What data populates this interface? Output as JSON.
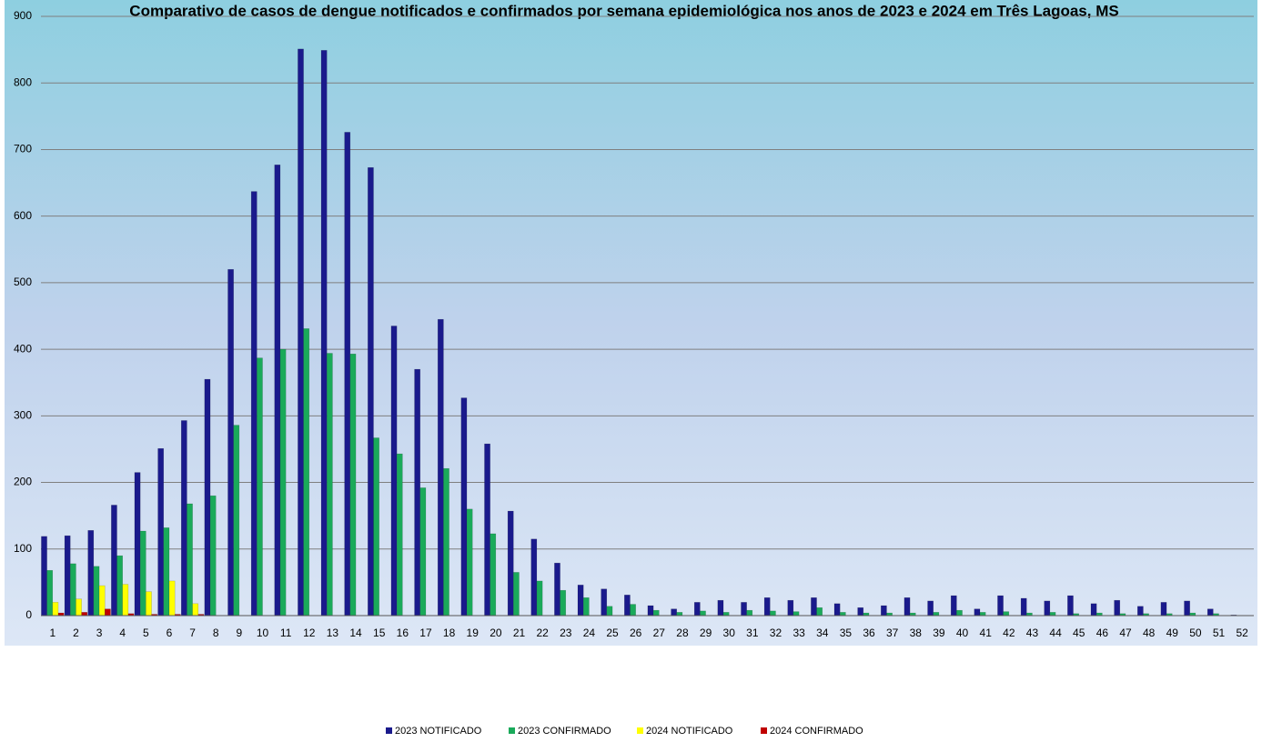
{
  "chart_data": {
    "type": "bar",
    "title": "Comparativo de casos de dengue notificados e confirmados por semana epidemiológica nos anos de 2023 e 2024 em Três Lagoas, MS",
    "categories": [
      "1",
      "2",
      "3",
      "4",
      "5",
      "6",
      "7",
      "8",
      "9",
      "10",
      "11",
      "12",
      "13",
      "14",
      "15",
      "16",
      "17",
      "18",
      "19",
      "20",
      "21",
      "22",
      "23",
      "24",
      "25",
      "26",
      "27",
      "28",
      "29",
      "30",
      "31",
      "32",
      "33",
      "34",
      "35",
      "36",
      "37",
      "38",
      "39",
      "40",
      "41",
      "42",
      "43",
      "44",
      "45",
      "46",
      "47",
      "48",
      "49",
      "50",
      "51",
      "52"
    ],
    "series": [
      {
        "name": "2023 NOTIFICADO",
        "color": "#1a1a8c",
        "values": [
          119,
          120,
          128,
          166,
          215,
          251,
          293,
          355,
          520,
          637,
          677,
          851,
          849,
          726,
          673,
          435,
          370,
          445,
          327,
          258,
          157,
          115,
          79,
          46,
          40,
          31,
          15,
          10,
          20,
          23,
          20,
          27,
          23,
          27,
          18,
          12,
          15,
          27,
          22,
          30,
          10,
          30,
          26,
          22,
          30,
          18,
          23,
          14,
          20,
          22,
          10,
          1
        ]
      },
      {
        "name": "2023 CONFIRMADO",
        "color": "#1aaa5a",
        "values": [
          68,
          78,
          74,
          90,
          127,
          132,
          168,
          180,
          286,
          387,
          400,
          431,
          394,
          393,
          267,
          243,
          192,
          221,
          160,
          123,
          65,
          52,
          38,
          27,
          14,
          17,
          8,
          5,
          7,
          5,
          8,
          7,
          6,
          12,
          5,
          4,
          4,
          4,
          5,
          8,
          5,
          6,
          4,
          5,
          3,
          4,
          3,
          3,
          3,
          4,
          3,
          0
        ]
      },
      {
        "name": "2024 NOTIFICADO",
        "color": "#ffff00",
        "values": [
          20,
          25,
          45,
          47,
          36,
          52,
          18,
          0,
          0,
          0,
          0,
          0,
          0,
          0,
          0,
          0,
          0,
          0,
          0,
          0,
          0,
          0,
          0,
          0,
          0,
          0,
          0,
          0,
          0,
          0,
          0,
          0,
          0,
          0,
          0,
          0,
          0,
          0,
          0,
          0,
          0,
          0,
          0,
          0,
          0,
          0,
          0,
          0,
          0,
          0,
          0,
          0
        ]
      },
      {
        "name": "2024 CONFIRMADO",
        "color": "#c00000",
        "values": [
          4,
          5,
          10,
          3,
          2,
          2,
          2,
          0,
          0,
          0,
          0,
          0,
          0,
          0,
          0,
          0,
          0,
          0,
          0,
          0,
          0,
          0,
          0,
          0,
          0,
          0,
          0,
          0,
          0,
          0,
          0,
          0,
          0,
          0,
          0,
          0,
          0,
          0,
          0,
          0,
          0,
          0,
          0,
          0,
          0,
          0,
          0,
          0,
          0,
          0,
          0,
          0
        ]
      }
    ],
    "ylim": [
      0,
      900
    ],
    "yticks": [
      0,
      100,
      200,
      300,
      400,
      500,
      600,
      700,
      800,
      900
    ],
    "grid": true,
    "legend": "bottom"
  }
}
